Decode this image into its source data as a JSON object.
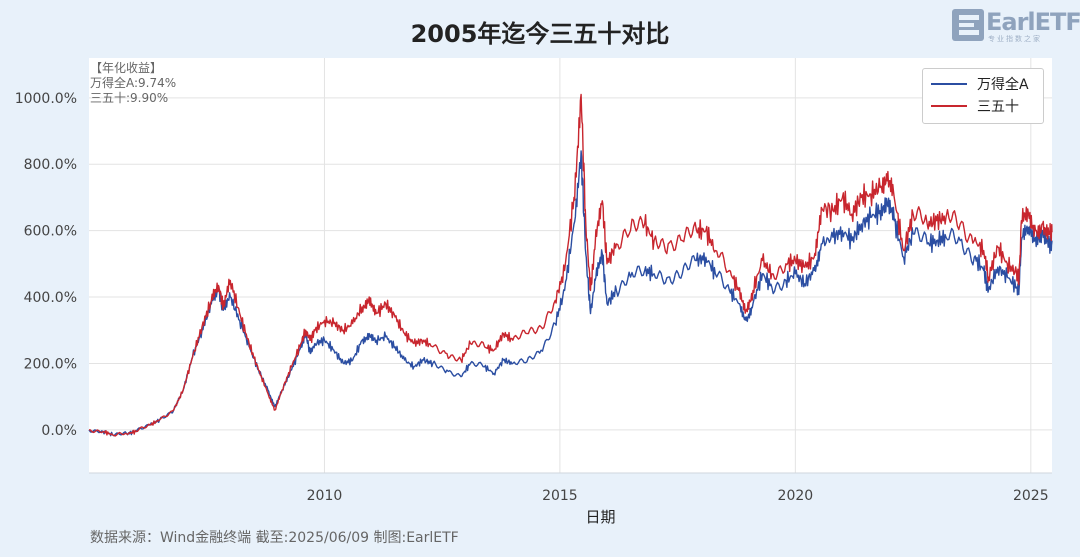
{
  "title": "2005年迄今三五十对比",
  "logo": {
    "word": "EarlETF",
    "sub": "专业指数之家"
  },
  "annotation": {
    "header": "【年化收益】",
    "lines": [
      "万得全A:9.74%",
      "三五十:9.90%"
    ]
  },
  "legend": [
    {
      "name": "万得全A",
      "color": "#2b4ea2"
    },
    {
      "name": "三五十",
      "color": "#c8262e"
    }
  ],
  "source": "数据来源：Wind金融终端 截至:2025/06/09 制图:EarlETF",
  "chart_data": {
    "type": "line",
    "xlabel": "日期",
    "ylabel": "",
    "xlim": [
      2005.0,
      2025.45
    ],
    "ylim": [
      -130,
      1120
    ],
    "yticks": [
      "0.0%",
      "200.0%",
      "400.0%",
      "600.0%",
      "800.0%",
      "1000.0%"
    ],
    "xticks": [
      "2010",
      "2015",
      "2020",
      "2025"
    ],
    "grid": true,
    "legend_position": "top-right",
    "series": [
      {
        "name": "万得全A",
        "color": "#2b4ea2",
        "points": [
          [
            2005.0,
            0
          ],
          [
            2005.3,
            -5
          ],
          [
            2005.5,
            -15
          ],
          [
            2005.8,
            -12
          ],
          [
            2006.0,
            -5
          ],
          [
            2006.3,
            15
          ],
          [
            2006.5,
            30
          ],
          [
            2006.8,
            60
          ],
          [
            2007.0,
            120
          ],
          [
            2007.2,
            220
          ],
          [
            2007.4,
            300
          ],
          [
            2007.6,
            380
          ],
          [
            2007.75,
            420
          ],
          [
            2007.85,
            360
          ],
          [
            2008.0,
            400
          ],
          [
            2008.2,
            330
          ],
          [
            2008.4,
            250
          ],
          [
            2008.6,
            180
          ],
          [
            2008.8,
            120
          ],
          [
            2008.95,
            70
          ],
          [
            2009.1,
            120
          ],
          [
            2009.3,
            180
          ],
          [
            2009.5,
            250
          ],
          [
            2009.6,
            290
          ],
          [
            2009.7,
            230
          ],
          [
            2009.8,
            260
          ],
          [
            2010.0,
            270
          ],
          [
            2010.2,
            240
          ],
          [
            2010.4,
            200
          ],
          [
            2010.6,
            210
          ],
          [
            2010.8,
            270
          ],
          [
            2010.95,
            290
          ],
          [
            2011.1,
            270
          ],
          [
            2011.3,
            280
          ],
          [
            2011.5,
            250
          ],
          [
            2011.7,
            210
          ],
          [
            2011.9,
            190
          ],
          [
            2012.1,
            210
          ],
          [
            2012.3,
            200
          ],
          [
            2012.6,
            180
          ],
          [
            2012.9,
            160
          ],
          [
            2013.1,
            200
          ],
          [
            2013.4,
            190
          ],
          [
            2013.6,
            170
          ],
          [
            2013.8,
            210
          ],
          [
            2014.0,
            200
          ],
          [
            2014.3,
            205
          ],
          [
            2014.6,
            240
          ],
          [
            2014.9,
            320
          ],
          [
            2015.1,
            420
          ],
          [
            2015.3,
            620
          ],
          [
            2015.45,
            840
          ],
          [
            2015.55,
            530
          ],
          [
            2015.65,
            350
          ],
          [
            2015.75,
            450
          ],
          [
            2015.9,
            530
          ],
          [
            2016.0,
            380
          ],
          [
            2016.2,
            420
          ],
          [
            2016.5,
            460
          ],
          [
            2016.8,
            480
          ],
          [
            2017.0,
            470
          ],
          [
            2017.3,
            460
          ],
          [
            2017.6,
            470
          ],
          [
            2017.9,
            510
          ],
          [
            2018.1,
            520
          ],
          [
            2018.3,
            470
          ],
          [
            2018.6,
            420
          ],
          [
            2018.8,
            380
          ],
          [
            2018.95,
            330
          ],
          [
            2019.1,
            380
          ],
          [
            2019.3,
            470
          ],
          [
            2019.5,
            430
          ],
          [
            2019.8,
            450
          ],
          [
            2020.0,
            470
          ],
          [
            2020.2,
            440
          ],
          [
            2020.4,
            480
          ],
          [
            2020.55,
            560
          ],
          [
            2020.8,
            580
          ],
          [
            2021.0,
            600
          ],
          [
            2021.2,
            570
          ],
          [
            2021.4,
            620
          ],
          [
            2021.6,
            640
          ],
          [
            2021.8,
            660
          ],
          [
            2021.95,
            680
          ],
          [
            2022.1,
            630
          ],
          [
            2022.3,
            520
          ],
          [
            2022.5,
            590
          ],
          [
            2022.8,
            560
          ],
          [
            2023.0,
            570
          ],
          [
            2023.2,
            580
          ],
          [
            2023.5,
            570
          ],
          [
            2023.8,
            520
          ],
          [
            2024.0,
            480
          ],
          [
            2024.1,
            420
          ],
          [
            2024.3,
            490
          ],
          [
            2024.5,
            460
          ],
          [
            2024.7,
            430
          ],
          [
            2024.75,
            420
          ],
          [
            2024.8,
            570
          ],
          [
            2024.95,
            610
          ],
          [
            2025.1,
            580
          ],
          [
            2025.25,
            600
          ],
          [
            2025.4,
            560
          ],
          [
            2025.45,
            570
          ]
        ]
      },
      {
        "name": "三五十",
        "color": "#c8262e",
        "points": [
          [
            2005.0,
            0
          ],
          [
            2005.3,
            -5
          ],
          [
            2005.5,
            -15
          ],
          [
            2005.8,
            -12
          ],
          [
            2006.0,
            -5
          ],
          [
            2006.3,
            15
          ],
          [
            2006.5,
            30
          ],
          [
            2006.8,
            60
          ],
          [
            2007.0,
            120
          ],
          [
            2007.2,
            220
          ],
          [
            2007.4,
            310
          ],
          [
            2007.6,
            390
          ],
          [
            2007.75,
            435
          ],
          [
            2007.85,
            370
          ],
          [
            2008.0,
            450
          ],
          [
            2008.2,
            350
          ],
          [
            2008.4,
            260
          ],
          [
            2008.6,
            180
          ],
          [
            2008.8,
            110
          ],
          [
            2008.95,
            60
          ],
          [
            2009.1,
            120
          ],
          [
            2009.3,
            190
          ],
          [
            2009.5,
            260
          ],
          [
            2009.6,
            300
          ],
          [
            2009.7,
            270
          ],
          [
            2009.8,
            300
          ],
          [
            2010.0,
            330
          ],
          [
            2010.2,
            320
          ],
          [
            2010.4,
            300
          ],
          [
            2010.6,
            320
          ],
          [
            2010.8,
            370
          ],
          [
            2010.95,
            400
          ],
          [
            2011.1,
            350
          ],
          [
            2011.3,
            380
          ],
          [
            2011.5,
            340
          ],
          [
            2011.7,
            290
          ],
          [
            2011.9,
            260
          ],
          [
            2012.1,
            270
          ],
          [
            2012.3,
            250
          ],
          [
            2012.6,
            230
          ],
          [
            2012.9,
            210
          ],
          [
            2013.1,
            260
          ],
          [
            2013.4,
            250
          ],
          [
            2013.6,
            240
          ],
          [
            2013.8,
            290
          ],
          [
            2014.0,
            270
          ],
          [
            2014.3,
            290
          ],
          [
            2014.6,
            310
          ],
          [
            2014.9,
            390
          ],
          [
            2015.1,
            480
          ],
          [
            2015.3,
            700
          ],
          [
            2015.45,
            1010
          ],
          [
            2015.55,
            620
          ],
          [
            2015.65,
            420
          ],
          [
            2015.75,
            560
          ],
          [
            2015.9,
            690
          ],
          [
            2016.0,
            500
          ],
          [
            2016.2,
            560
          ],
          [
            2016.5,
            600
          ],
          [
            2016.8,
            620
          ],
          [
            2017.0,
            570
          ],
          [
            2017.3,
            560
          ],
          [
            2017.6,
            570
          ],
          [
            2017.9,
            600
          ],
          [
            2018.1,
            600
          ],
          [
            2018.3,
            540
          ],
          [
            2018.6,
            480
          ],
          [
            2018.8,
            420
          ],
          [
            2018.95,
            360
          ],
          [
            2019.1,
            420
          ],
          [
            2019.3,
            510
          ],
          [
            2019.5,
            470
          ],
          [
            2019.8,
            500
          ],
          [
            2020.0,
            510
          ],
          [
            2020.2,
            490
          ],
          [
            2020.4,
            520
          ],
          [
            2020.55,
            670
          ],
          [
            2020.8,
            660
          ],
          [
            2021.0,
            700
          ],
          [
            2021.2,
            650
          ],
          [
            2021.4,
            700
          ],
          [
            2021.6,
            710
          ],
          [
            2021.8,
            730
          ],
          [
            2021.95,
            750
          ],
          [
            2022.1,
            700
          ],
          [
            2022.3,
            540
          ],
          [
            2022.5,
            650
          ],
          [
            2022.8,
            620
          ],
          [
            2023.0,
            630
          ],
          [
            2023.2,
            640
          ],
          [
            2023.5,
            620
          ],
          [
            2023.8,
            570
          ],
          [
            2024.0,
            540
          ],
          [
            2024.1,
            460
          ],
          [
            2024.3,
            550
          ],
          [
            2024.5,
            500
          ],
          [
            2024.7,
            470
          ],
          [
            2024.75,
            450
          ],
          [
            2024.8,
            630
          ],
          [
            2024.95,
            650
          ],
          [
            2025.1,
            600
          ],
          [
            2025.25,
            620
          ],
          [
            2025.4,
            590
          ],
          [
            2025.45,
            595
          ]
        ]
      }
    ]
  }
}
